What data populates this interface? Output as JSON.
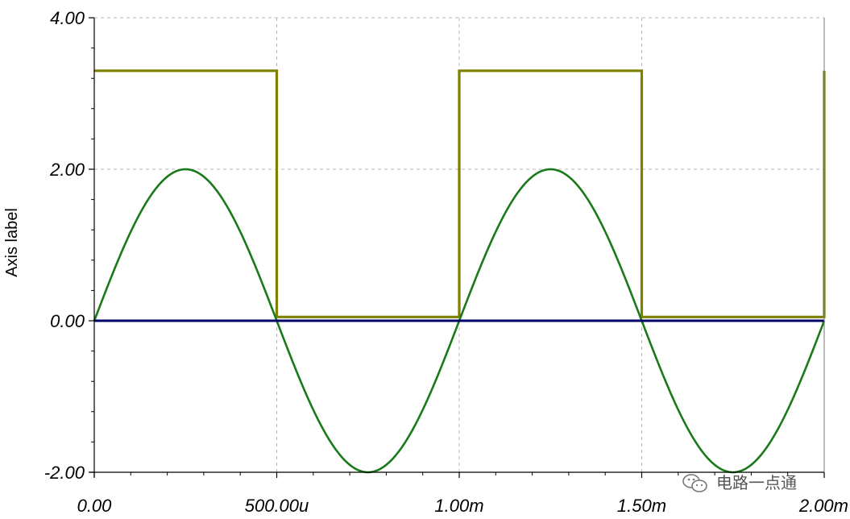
{
  "chart_data": {
    "type": "line",
    "title": "",
    "xlabel": "",
    "ylabel": "Axis label",
    "xlim": [
      0,
      0.002
    ],
    "ylim": [
      -2,
      4
    ],
    "x_ticks": [
      {
        "value": 0,
        "label": "0.00"
      },
      {
        "value": 0.0005,
        "label": "500.00u"
      },
      {
        "value": 0.001,
        "label": "1.00m"
      },
      {
        "value": 0.0015,
        "label": "1.50m"
      },
      {
        "value": 0.002,
        "label": "2.00m"
      }
    ],
    "y_ticks": [
      {
        "value": -2,
        "label": "-2.00"
      },
      {
        "value": 0,
        "label": "0.00"
      },
      {
        "value": 2,
        "label": "2.00"
      },
      {
        "value": 4,
        "label": "4.00"
      }
    ],
    "grid": true,
    "series": [
      {
        "color": "#808000",
        "shape": "square",
        "x": [
          0,
          0.0005,
          0.0005,
          0.001,
          0.001,
          0.0015,
          0.0015,
          0.002,
          0.002
        ],
        "y": [
          3.3,
          3.3,
          0.05,
          0.05,
          3.3,
          3.3,
          0.05,
          0.05,
          3.3
        ]
      },
      {
        "color": "#1a7a1a",
        "shape": "sine",
        "amplitude": 2,
        "frequency_hz": 1000,
        "x_range": [
          0,
          0.002
        ]
      },
      {
        "color": "#000066",
        "shape": "constant",
        "x": [
          0,
          0.002
        ],
        "y": [
          0,
          0
        ]
      }
    ]
  },
  "watermark": {
    "text": "电路一点通",
    "icon": "wechat-icon"
  }
}
